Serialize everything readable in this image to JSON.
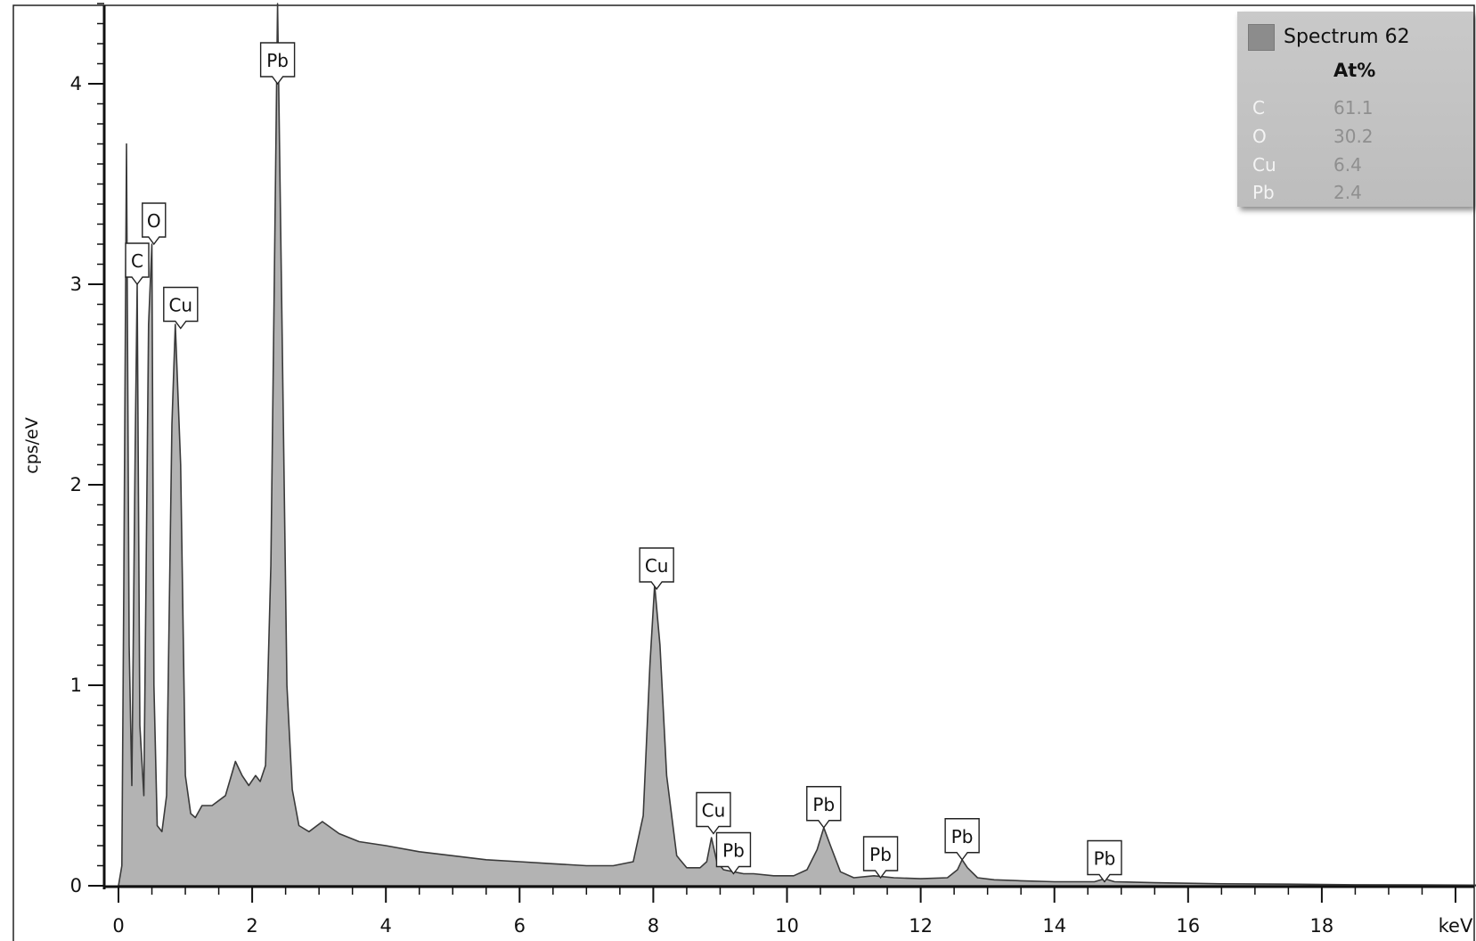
{
  "chart_data": {
    "type": "area",
    "ylabel": "cps/eV",
    "x_unit_label": "keV",
    "xlim": [
      0,
      20.3
    ],
    "ylim": [
      0,
      4.4
    ],
    "x_ticks": [
      "0",
      "2",
      "4",
      "6",
      "8",
      "10",
      "12",
      "14",
      "16",
      "18"
    ],
    "y_ticks": [
      "0",
      "1",
      "2",
      "3",
      "4"
    ],
    "series": [
      {
        "name": "Spectrum 62",
        "x": [
          0,
          0.05,
          0.08,
          0.12,
          0.16,
          0.2,
          0.25,
          0.28,
          0.32,
          0.38,
          0.45,
          0.5,
          0.53,
          0.58,
          0.65,
          0.72,
          0.8,
          0.85,
          0.93,
          1.0,
          1.08,
          1.15,
          1.25,
          1.4,
          1.6,
          1.75,
          1.85,
          1.95,
          2.05,
          2.12,
          2.2,
          2.28,
          2.33,
          2.38,
          2.45,
          2.52,
          2.6,
          2.7,
          2.85,
          3.05,
          3.3,
          3.6,
          4.0,
          4.5,
          5.0,
          5.5,
          6.0,
          6.5,
          7.0,
          7.4,
          7.7,
          7.85,
          7.95,
          8.02,
          8.1,
          8.2,
          8.35,
          8.5,
          8.7,
          8.8,
          8.87,
          8.95,
          9.05,
          9.2,
          9.35,
          9.5,
          9.8,
          10.1,
          10.3,
          10.45,
          10.55,
          10.65,
          10.8,
          11.0,
          11.3,
          11.45,
          11.6,
          12.0,
          12.4,
          12.55,
          12.62,
          12.7,
          12.85,
          13.1,
          13.5,
          14.0,
          14.6,
          14.75,
          14.9,
          15.5,
          16.5,
          17.5,
          18.5,
          19.5,
          20.3
        ],
        "y": [
          0.0,
          0.1,
          1.5,
          3.7,
          1.2,
          0.5,
          2.2,
          3.0,
          0.8,
          0.45,
          2.8,
          3.2,
          1.0,
          0.3,
          0.27,
          0.45,
          2.3,
          2.8,
          2.1,
          0.55,
          0.36,
          0.34,
          0.4,
          0.4,
          0.45,
          0.62,
          0.55,
          0.5,
          0.55,
          0.52,
          0.6,
          1.6,
          3.0,
          4.4,
          2.7,
          1.0,
          0.48,
          0.3,
          0.27,
          0.32,
          0.26,
          0.22,
          0.2,
          0.17,
          0.15,
          0.13,
          0.12,
          0.11,
          0.1,
          0.1,
          0.12,
          0.35,
          1.1,
          1.5,
          1.2,
          0.55,
          0.15,
          0.09,
          0.09,
          0.12,
          0.24,
          0.12,
          0.08,
          0.07,
          0.06,
          0.06,
          0.05,
          0.05,
          0.08,
          0.18,
          0.29,
          0.2,
          0.07,
          0.04,
          0.05,
          0.045,
          0.04,
          0.035,
          0.04,
          0.08,
          0.13,
          0.09,
          0.04,
          0.03,
          0.025,
          0.02,
          0.02,
          0.035,
          0.02,
          0.015,
          0.01,
          0.008,
          0.005,
          0.004,
          0.003
        ]
      }
    ],
    "peak_labels": [
      {
        "label": "C",
        "x": 0.28,
        "y": 3.0
      },
      {
        "label": "O",
        "x": 0.53,
        "y": 3.2
      },
      {
        "label": "Cu",
        "x": 0.93,
        "y": 2.78
      },
      {
        "label": "Pb",
        "x": 2.38,
        "y": 4.0
      },
      {
        "label": "Cu",
        "x": 8.05,
        "y": 1.48
      },
      {
        "label": "Cu",
        "x": 8.9,
        "y": 0.26
      },
      {
        "label": "Pb",
        "x": 9.2,
        "y": 0.06
      },
      {
        "label": "Pb",
        "x": 10.55,
        "y": 0.29
      },
      {
        "label": "Pb",
        "x": 11.4,
        "y": 0.04
      },
      {
        "label": "Pb",
        "x": 12.62,
        "y": 0.13
      },
      {
        "label": "Pb",
        "x": 14.75,
        "y": 0.02
      }
    ],
    "legend_position": "top-right",
    "grid": false,
    "fill_color": "#b3b3b3",
    "line_color": "#3a3a3a"
  },
  "legend": {
    "title": "Spectrum 62",
    "header": "At%",
    "rows": [
      {
        "element": "C",
        "value": "61.1"
      },
      {
        "element": "O",
        "value": "30.2"
      },
      {
        "element": "Cu",
        "value": "6.4"
      },
      {
        "element": "Pb",
        "value": "2.4"
      }
    ]
  }
}
